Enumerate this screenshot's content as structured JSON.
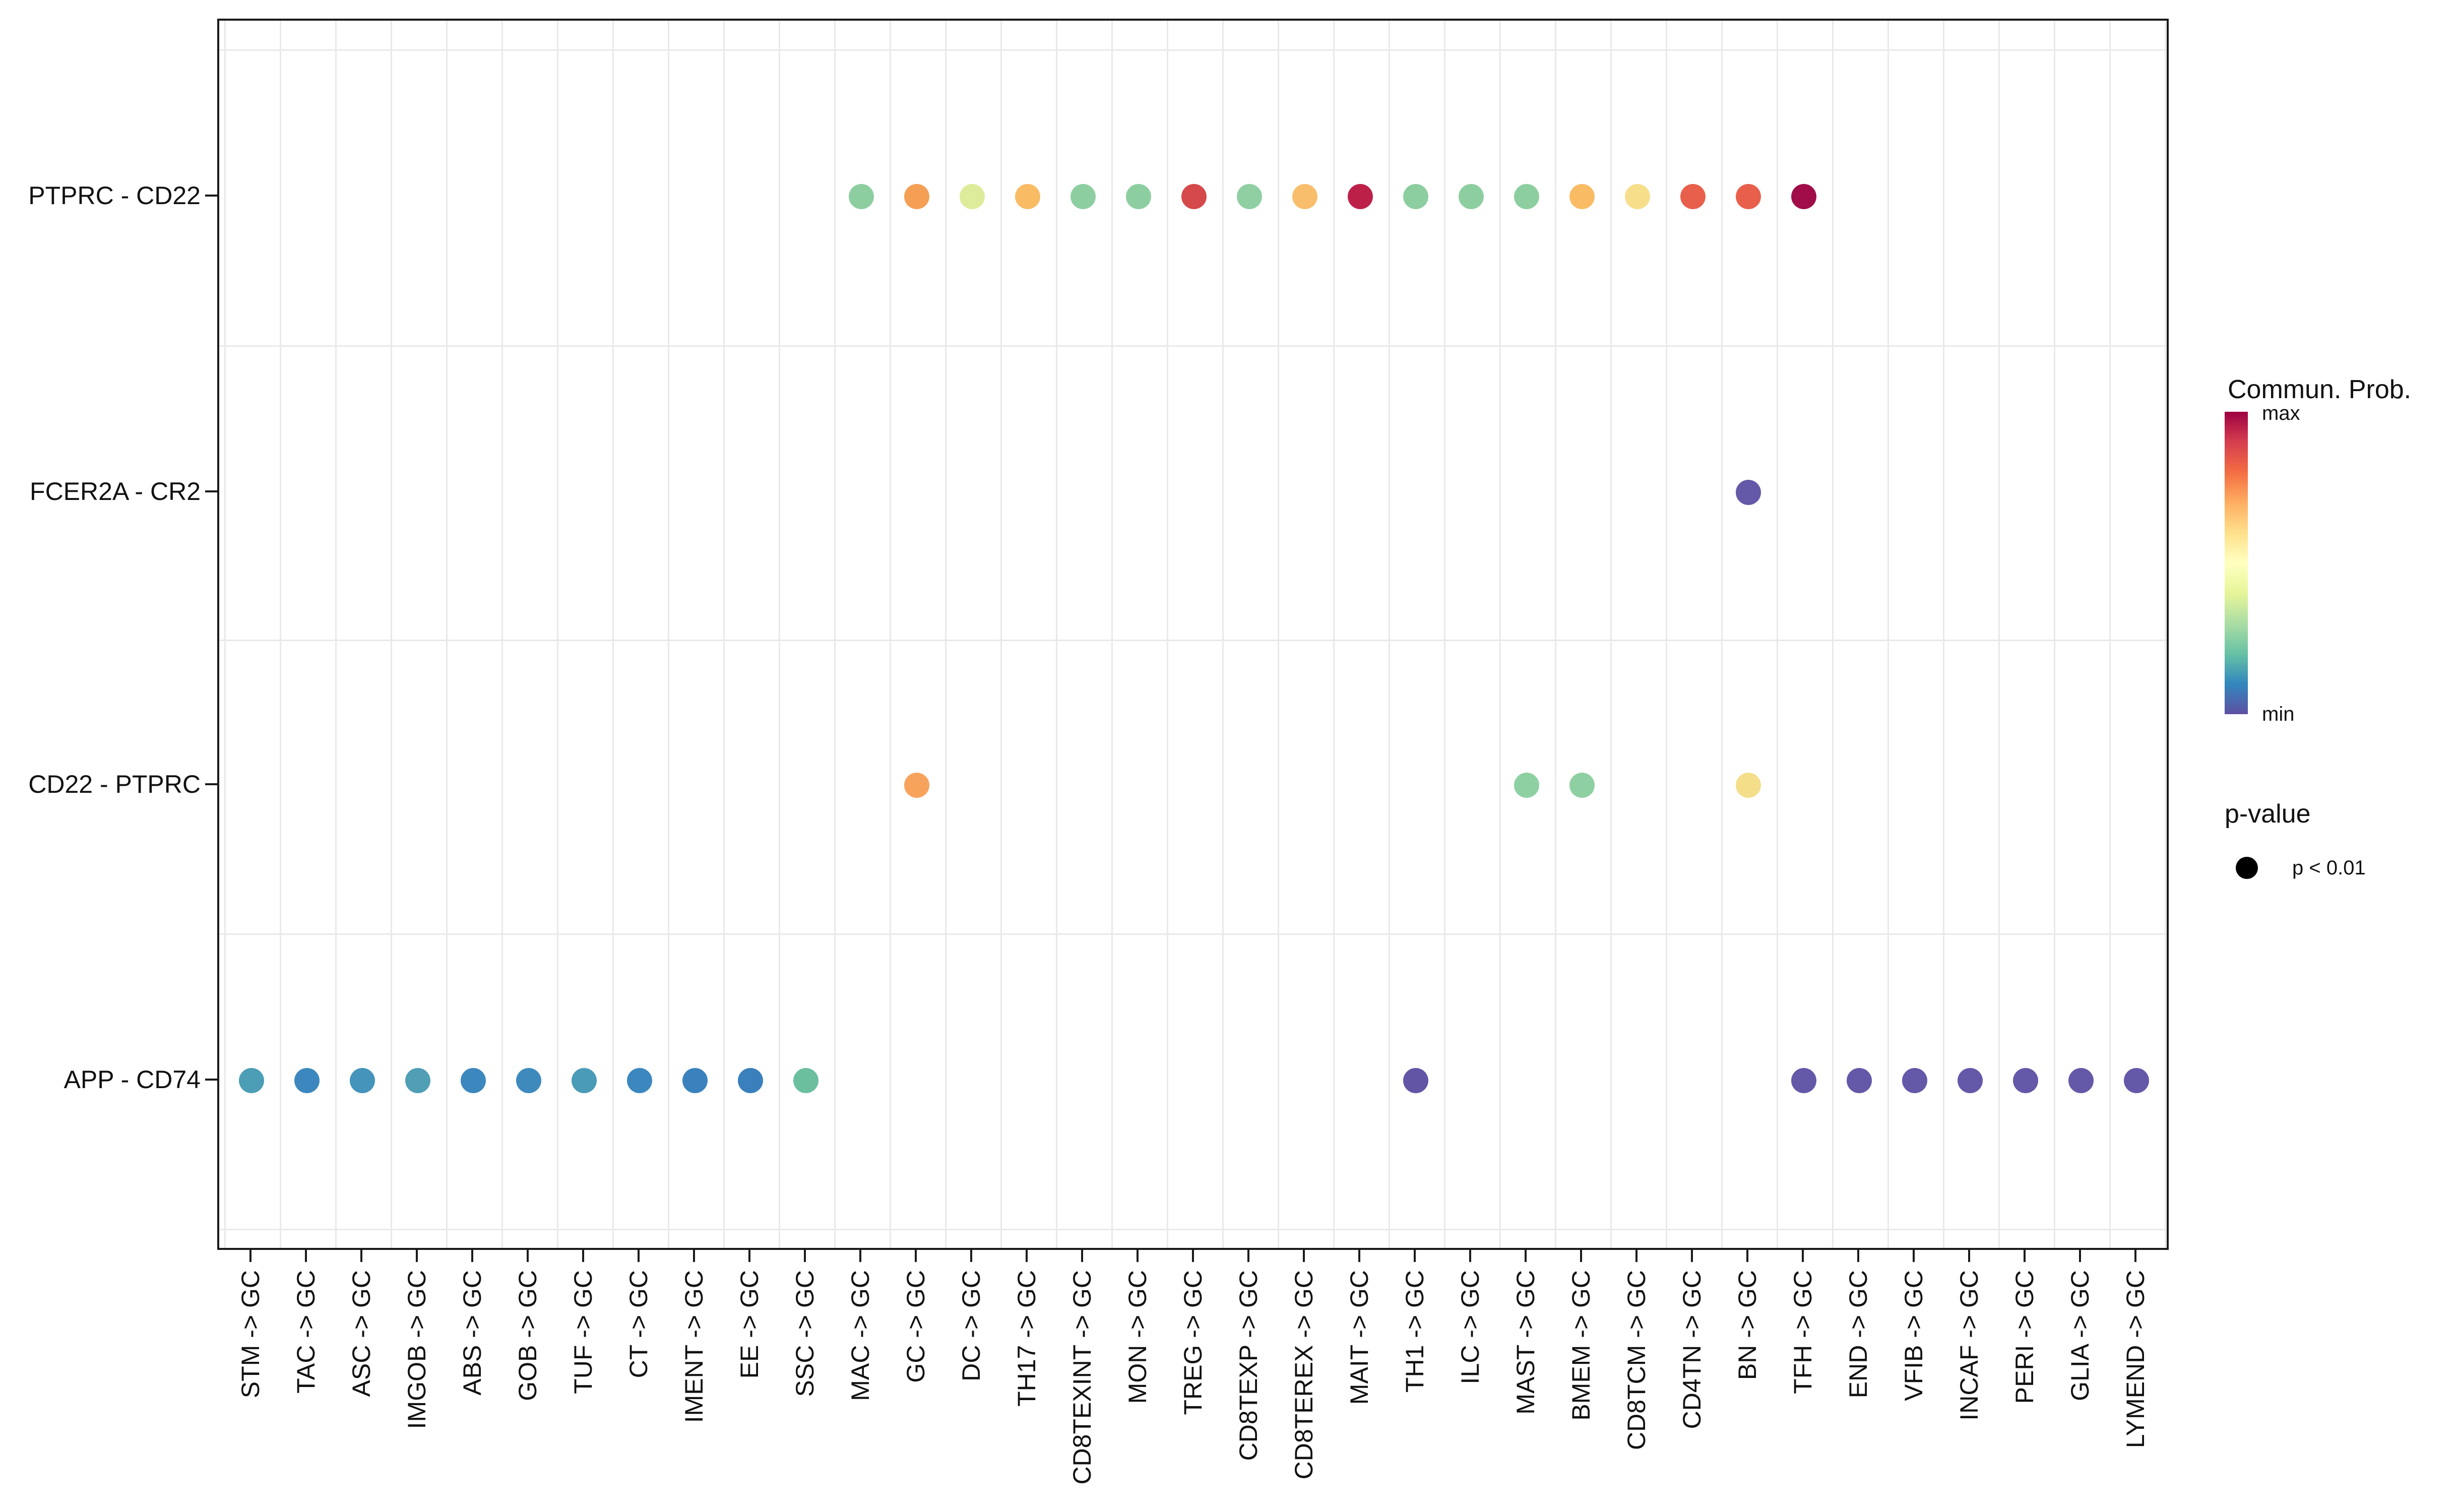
{
  "legend": {
    "color_title": "Commun. Prob.",
    "color_max_label": "max",
    "color_min_label": "min",
    "size_title": "p-value",
    "size_label": "p < 0.01",
    "gradient_top_to_bottom": [
      "#9E0142",
      "#D53E4F",
      "#F46D43",
      "#FDAE61",
      "#FEE08B",
      "#FFFFBF",
      "#E6F598",
      "#ABDDA4",
      "#66C2A5",
      "#3288BD",
      "#5E4FA2"
    ],
    "key_dot_color": "#000000"
  },
  "chart_data": {
    "type": "scatter",
    "title": "",
    "xlabel": "",
    "ylabel": "",
    "grid": "on",
    "legend_position": "right",
    "x_categories": [
      "STM -> GC",
      "TAC -> GC",
      "ASC -> GC",
      "IMGOB -> GC",
      "ABS -> GC",
      "GOB -> GC",
      "TUF -> GC",
      "CT -> GC",
      "IMENT -> GC",
      "EE -> GC",
      "SSC -> GC",
      "MAC -> GC",
      "GC -> GC",
      "DC -> GC",
      "TH17 -> GC",
      "CD8TEXINT -> GC",
      "MON -> GC",
      "TREG -> GC",
      "CD8TEXP -> GC",
      "CD8TEREX -> GC",
      "MAIT -> GC",
      "TH1 -> GC",
      "ILC -> GC",
      "MAST -> GC",
      "BMEM -> GC",
      "CD8TCM -> GC",
      "CD4TN -> GC",
      "BN -> GC",
      "TFH -> GC",
      "END -> GC",
      "VFIB -> GC",
      "INCAF -> GC",
      "PERI -> GC",
      "GLIA -> GC",
      "LYMEND -> GC"
    ],
    "y_categories": [
      "PTPRC - CD22",
      "FCER2A - CR2",
      "CD22 - PTPRC",
      "APP - CD74"
    ],
    "color_scale_note": "color encodes communication probability from min (purple #5E4FA2) to max (dark red #9E0142); all shown dots are p < 0.01",
    "points": [
      {
        "y": "PTPRC - CD22",
        "x": "MAC -> GC",
        "color": "#8DCEA0"
      },
      {
        "y": "PTPRC - CD22",
        "x": "GC -> GC",
        "color": "#F59F55"
      },
      {
        "y": "PTPRC - CD22",
        "x": "DC -> GC",
        "color": "#DDEC9A"
      },
      {
        "y": "PTPRC - CD22",
        "x": "TH17 -> GC",
        "color": "#F9BC64"
      },
      {
        "y": "PTPRC - CD22",
        "x": "CD8TEXINT -> GC",
        "color": "#8DCEA0"
      },
      {
        "y": "PTPRC - CD22",
        "x": "MON -> GC",
        "color": "#8DCEA0"
      },
      {
        "y": "PTPRC - CD22",
        "x": "TREG -> GC",
        "color": "#D6494A"
      },
      {
        "y": "PTPRC - CD22",
        "x": "CD8TEXP -> GC",
        "color": "#90CFA2"
      },
      {
        "y": "PTPRC - CD22",
        "x": "CD8TEREX -> GC",
        "color": "#F9BE6C"
      },
      {
        "y": "PTPRC - CD22",
        "x": "MAIT -> GC",
        "color": "#BC2049"
      },
      {
        "y": "PTPRC - CD22",
        "x": "TH1 -> GC",
        "color": "#8DCEA0"
      },
      {
        "y": "PTPRC - CD22",
        "x": "ILC -> GC",
        "color": "#8DCEA0"
      },
      {
        "y": "PTPRC - CD22",
        "x": "MAST -> GC",
        "color": "#8DCEA0"
      },
      {
        "y": "PTPRC - CD22",
        "x": "BMEM -> GC",
        "color": "#F9BC64"
      },
      {
        "y": "PTPRC - CD22",
        "x": "CD8TCM -> GC",
        "color": "#F7DE8B"
      },
      {
        "y": "PTPRC - CD22",
        "x": "CD4TN -> GC",
        "color": "#E8604C"
      },
      {
        "y": "PTPRC - CD22",
        "x": "BN -> GC",
        "color": "#E8604C"
      },
      {
        "y": "PTPRC - CD22",
        "x": "TFH -> GC",
        "color": "#A00D49"
      },
      {
        "y": "FCER2A - CR2",
        "x": "BN -> GC",
        "color": "#6458A8"
      },
      {
        "y": "CD22 - PTPRC",
        "x": "GC -> GC",
        "color": "#F8A35C"
      },
      {
        "y": "CD22 - PTPRC",
        "x": "MAST -> GC",
        "color": "#8ED0A2"
      },
      {
        "y": "CD22 - PTPRC",
        "x": "BMEM -> GC",
        "color": "#8ED0A2"
      },
      {
        "y": "CD22 - PTPRC",
        "x": "BN -> GC",
        "color": "#F5DE8A"
      },
      {
        "y": "APP - CD74",
        "x": "STM -> GC",
        "color": "#4C9DB6"
      },
      {
        "y": "APP - CD74",
        "x": "TAC -> GC",
        "color": "#3C88BE"
      },
      {
        "y": "APP - CD74",
        "x": "ASC -> GC",
        "color": "#4494BB"
      },
      {
        "y": "APP - CD74",
        "x": "IMGOB -> GC",
        "color": "#509FB4"
      },
      {
        "y": "APP - CD74",
        "x": "ABS -> GC",
        "color": "#3C88BE"
      },
      {
        "y": "APP - CD74",
        "x": "GOB -> GC",
        "color": "#3E8ABD"
      },
      {
        "y": "APP - CD74",
        "x": "TUF -> GC",
        "color": "#4A9BB8"
      },
      {
        "y": "APP - CD74",
        "x": "CT -> GC",
        "color": "#3C87BE"
      },
      {
        "y": "APP - CD74",
        "x": "IMENT -> GC",
        "color": "#3A82BD"
      },
      {
        "y": "APP - CD74",
        "x": "EE -> GC",
        "color": "#3A80BC"
      },
      {
        "y": "APP - CD74",
        "x": "SSC -> GC",
        "color": "#6BBF9E"
      },
      {
        "y": "APP - CD74",
        "x": "TH1 -> GC",
        "color": "#6355A6"
      },
      {
        "y": "APP - CD74",
        "x": "TFH -> GC",
        "color": "#6458A8"
      },
      {
        "y": "APP - CD74",
        "x": "END -> GC",
        "color": "#6458A8"
      },
      {
        "y": "APP - CD74",
        "x": "VFIB -> GC",
        "color": "#6458A8"
      },
      {
        "y": "APP - CD74",
        "x": "INCAF -> GC",
        "color": "#6458A8"
      },
      {
        "y": "APP - CD74",
        "x": "PERI -> GC",
        "color": "#6458A8"
      },
      {
        "y": "APP - CD74",
        "x": "GLIA -> GC",
        "color": "#6458A8"
      },
      {
        "y": "APP - CD74",
        "x": "LYMEND -> GC",
        "color": "#6458A8"
      }
    ]
  }
}
